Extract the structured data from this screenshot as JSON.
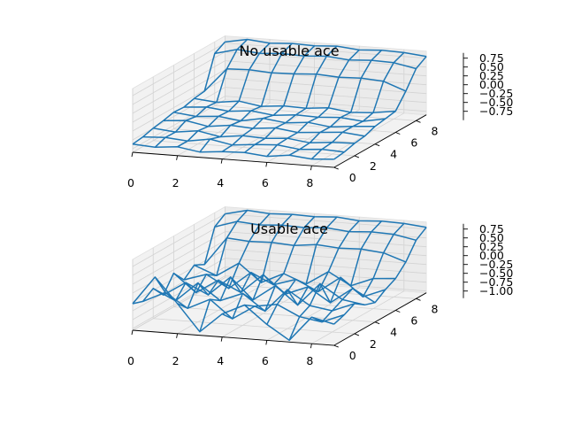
{
  "chart_data": [
    {
      "type": "wireframe",
      "title": "No usable ace",
      "xlabel": "",
      "ylabel": "",
      "zlabel": "",
      "x_ticks": [
        "0",
        "2",
        "4",
        "6",
        "8"
      ],
      "y_ticks": [
        "0",
        "2",
        "4",
        "6",
        "8"
      ],
      "z_ticks": [
        "−0.75",
        "−0.50",
        "−0.25",
        "0.00",
        "0.25",
        "0.50",
        "0.75"
      ],
      "xlim": [
        0,
        9
      ],
      "ylim": [
        0,
        9
      ],
      "zlim": [
        -0.85,
        0.95
      ],
      "grid": true,
      "color": "#1f77b4",
      "x": [
        0,
        1,
        2,
        3,
        4,
        5,
        6,
        7,
        8,
        9
      ],
      "y": [
        0,
        1,
        2,
        3,
        4,
        5,
        6,
        7,
        8,
        9
      ],
      "z": [
        [
          -0.62,
          -0.66,
          -0.6,
          -0.7,
          -0.64,
          -0.62,
          -0.68,
          -0.6,
          -0.66,
          -0.62
        ],
        [
          -0.58,
          -0.55,
          -0.6,
          -0.5,
          -0.62,
          -0.56,
          -0.52,
          -0.6,
          -0.55,
          -0.58
        ],
        [
          -0.5,
          -0.56,
          -0.48,
          -0.6,
          -0.52,
          -0.55,
          -0.5,
          -0.58,
          -0.52,
          -0.5
        ],
        [
          -0.45,
          -0.4,
          -0.52,
          -0.44,
          -0.48,
          -0.42,
          -0.5,
          -0.45,
          -0.4,
          -0.46
        ],
        [
          -0.38,
          -0.45,
          -0.4,
          -0.48,
          -0.36,
          -0.44,
          -0.38,
          -0.46,
          -0.4,
          -0.35
        ],
        [
          -0.4,
          -0.35,
          -0.42,
          -0.36,
          -0.44,
          -0.38,
          -0.4,
          -0.36,
          -0.42,
          -0.3
        ],
        [
          -0.32,
          -0.38,
          -0.3,
          -0.4,
          -0.34,
          -0.36,
          -0.3,
          -0.38,
          -0.34,
          -0.25
        ],
        [
          -0.28,
          0.4,
          0.42,
          0.38,
          0.4,
          0.44,
          0.4,
          0.42,
          0.38,
          0.15
        ],
        [
          0.62,
          0.78,
          0.72,
          0.76,
          0.74,
          0.78,
          0.72,
          0.76,
          0.74,
          0.62
        ],
        [
          0.78,
          0.9,
          0.84,
          0.88,
          0.86,
          0.9,
          0.84,
          0.88,
          0.86,
          0.8
        ]
      ]
    },
    {
      "type": "wireframe",
      "title": "Usable ace",
      "xlabel": "",
      "ylabel": "",
      "zlabel": "",
      "x_ticks": [
        "0",
        "2",
        "4",
        "6",
        "8"
      ],
      "y_ticks": [
        "0",
        "2",
        "4",
        "6",
        "8"
      ],
      "z_ticks": [
        "−1.00",
        "−0.75",
        "−0.50",
        "−0.25",
        "0.00",
        "0.25",
        "0.50",
        "0.75"
      ],
      "xlim": [
        0,
        9
      ],
      "ylim": [
        0,
        9
      ],
      "zlim": [
        -1.05,
        0.95
      ],
      "grid": true,
      "color": "#1f77b4",
      "x": [
        0,
        1,
        2,
        3,
        4,
        5,
        6,
        7,
        8,
        9
      ],
      "y": [
        0,
        1,
        2,
        3,
        4,
        5,
        6,
        7,
        8,
        9
      ],
      "z": [
        [
          -0.3,
          0.5,
          -0.2,
          -0.95,
          -0.4,
          -0.1,
          -0.6,
          -1.0,
          -0.3,
          -0.45
        ],
        [
          -0.4,
          -0.1,
          -0.5,
          -0.2,
          -0.7,
          -0.3,
          -0.2,
          -0.5,
          -0.6,
          -0.35
        ],
        [
          -0.2,
          -0.5,
          0.05,
          -0.4,
          -0.15,
          -0.6,
          0.05,
          -0.35,
          -0.45,
          -0.2
        ],
        [
          -0.55,
          -0.15,
          -0.45,
          0.1,
          -0.5,
          -0.05,
          -0.55,
          0.1,
          -0.3,
          -0.4
        ],
        [
          -0.1,
          -0.6,
          -0.2,
          -0.5,
          0.05,
          -0.45,
          -0.2,
          -0.6,
          -0.15,
          -0.5
        ],
        [
          -0.45,
          -0.25,
          -0.6,
          -0.1,
          -0.4,
          -0.2,
          -0.5,
          -0.05,
          -0.55,
          -0.3
        ],
        [
          -0.2,
          -0.45,
          -0.05,
          -0.55,
          -0.25,
          -0.5,
          -0.1,
          -0.45,
          -0.2,
          -0.15
        ],
        [
          -0.35,
          0.45,
          0.4,
          0.42,
          0.38,
          0.45,
          0.4,
          0.42,
          0.36,
          0.15
        ],
        [
          0.55,
          0.75,
          0.7,
          0.74,
          0.72,
          0.76,
          0.7,
          0.74,
          0.72,
          0.6
        ],
        [
          0.75,
          0.9,
          0.85,
          0.88,
          0.86,
          0.9,
          0.84,
          0.88,
          0.86,
          0.8
        ]
      ]
    }
  ]
}
